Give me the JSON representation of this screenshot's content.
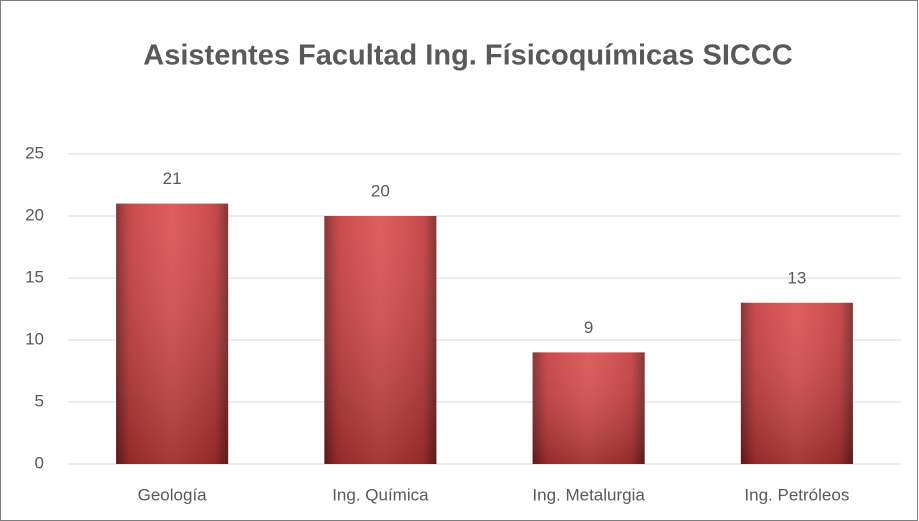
{
  "chart_data": {
    "type": "bar",
    "title": "Asistentes Facultad Ing. Físicoquímicas SICCC",
    "categories": [
      "Geología",
      "Ing. Química",
      "Ing. Metalurgia",
      "Ing. Petróleos"
    ],
    "values": [
      21,
      20,
      9,
      13
    ],
    "color": "#d83c3e",
    "ylim": [
      0,
      25
    ],
    "yticks": [
      0,
      5,
      10,
      15,
      20,
      25
    ],
    "grid": true
  }
}
